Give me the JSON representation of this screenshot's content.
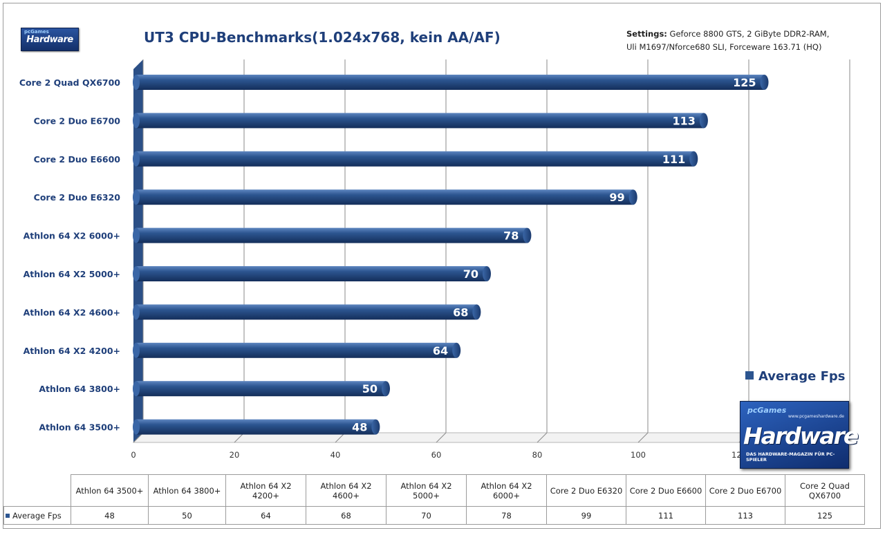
{
  "settings": {
    "label": "Settings:",
    "line1": "Geforce 8800 GTS,  2 GiByte DDR2-RAM,",
    "line2": "Uli M1697/Nforce680 SLI, Forceware 163.71 (HQ)"
  },
  "logo_small": {
    "text": "Hardware",
    "top": "pcGames"
  },
  "logo_big": {
    "pc": "pcGames",
    "url": "www.pcgameshardware.de",
    "wordmark": "Hardware",
    "tagline": "DAS HARDWARE-MAGAZIN FÜR PC-SPIELER"
  },
  "colors": {
    "bar": "#2c5590",
    "bar_light": "#4f79b5",
    "bar_dark": "#16325f",
    "title": "#1f3f7a",
    "grid": "#8a8a8a"
  },
  "chart_data": {
    "type": "bar",
    "orientation": "horizontal",
    "title": "UT3 CPU-Benchmarks(1.024x768, kein AA/AF)",
    "categories": [
      "Athlon 64 3500+",
      "Athlon 64 3800+",
      "Athlon 64 X2 4200+",
      "Athlon 64 X2 4600+",
      "Athlon 64 X2 5000+",
      "Athlon 64 X2 6000+",
      "Core 2 Duo  E6320",
      "Core 2 Duo  E6600",
      "Core 2 Duo  E6700",
      "Core 2 Quad  QX6700"
    ],
    "series": [
      {
        "name": "Average Fps",
        "values": [
          48,
          50,
          64,
          68,
          70,
          78,
          99,
          111,
          113,
          125
        ]
      }
    ],
    "xlim": [
      0,
      140
    ],
    "x_ticks": [
      "0",
      "20",
      "40",
      "60",
      "80",
      "100",
      "120",
      "140"
    ],
    "grid": true,
    "legend": "right",
    "table": {
      "headers": [
        "Athlon 64 3500+",
        "Athlon 64 3800+",
        "Athlon 64 X2 4200+",
        "Athlon 64 X2 4600+",
        "Athlon 64 X2 5000+",
        "Athlon 64 X2 6000+",
        "Core 2 Duo E6320",
        "Core 2 Duo E6600",
        "Core 2 Duo E6700",
        "Core 2 Quad QX6700"
      ],
      "values": [
        "48",
        "50",
        "64",
        "68",
        "70",
        "78",
        "99",
        "111",
        "113",
        "125"
      ]
    }
  }
}
